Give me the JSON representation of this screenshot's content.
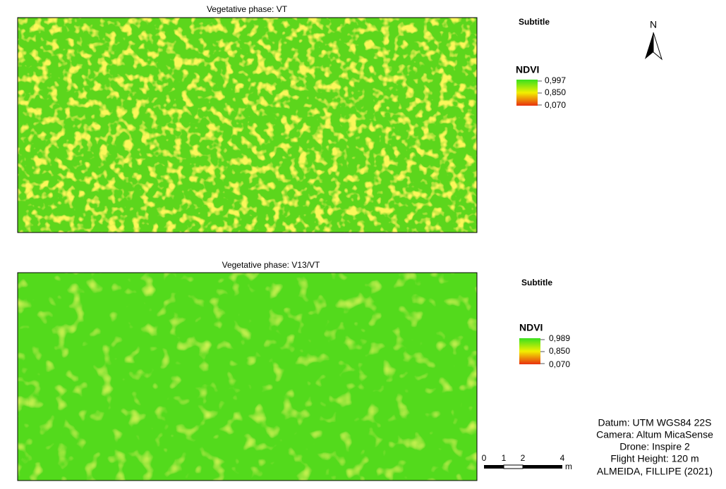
{
  "panels": [
    {
      "title": "Vegetative phase: VT",
      "legend_subtitle": "Subtitle",
      "legend_title": "NDVI",
      "legend_labels": [
        "0,997",
        "0,850",
        "0,070"
      ]
    },
    {
      "title": "Vegetative phase: V13/VT",
      "legend_subtitle": "Subtitle",
      "legend_title": "NDVI",
      "legend_labels": [
        "0,989",
        "0,850",
        "0,070"
      ]
    }
  ],
  "north_label": "N",
  "scale_bar": {
    "labels": [
      "0",
      "1",
      "2",
      "4"
    ],
    "unit": "m"
  },
  "credits": [
    "Datum: UTM WGS84 22S",
    "Camera: Altum MicaSense",
    "Drone: Inspire 2",
    "Flight Height: 120 m",
    "ALMEIDA, FILLIPE (2021)"
  ]
}
